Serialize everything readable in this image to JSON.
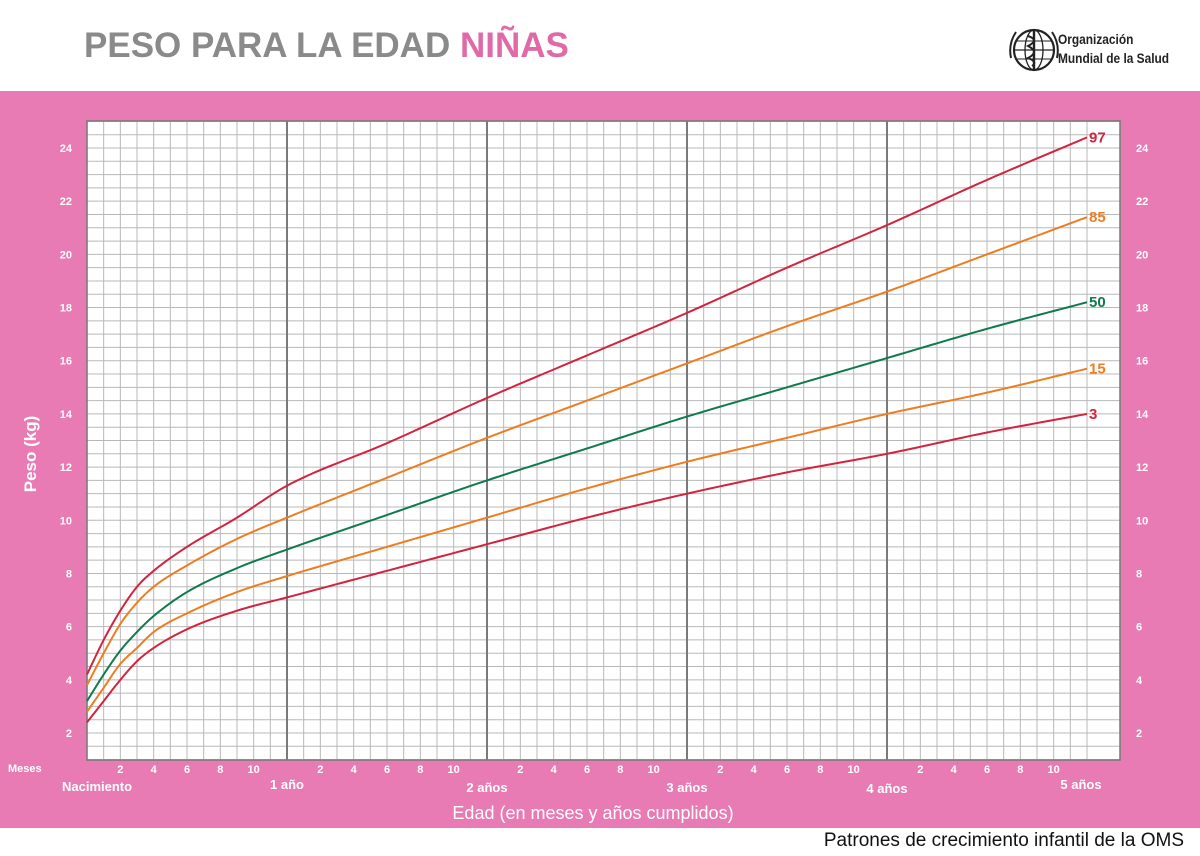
{
  "header": {
    "title_main": "PESO PARA LA EDAD",
    "title_accent": "NIÑAS",
    "org_line1": "Organización",
    "org_line2": "Mundial de la Salud"
  },
  "footer": {
    "text": "Patrones de crecimiento infantil de la OMS"
  },
  "colors": {
    "band": "#e87ab4",
    "title_gray": "#8a8a8a",
    "title_pink": "#e06aa8",
    "p3_97": "#d2233f",
    "p15_85": "#ee7d22",
    "p50": "#0f7a4c",
    "grid": "#b8b8b8",
    "grid_major": "#7a7a7a"
  },
  "chart_data": {
    "type": "line",
    "title": "PESO PARA LA EDAD NIÑAS",
    "xlabel": "Edad (en meses y años cumplidos)",
    "ylabel": "Peso (kg)",
    "x_unit": "months",
    "xlim": [
      0,
      60
    ],
    "ylim": [
      1,
      25
    ],
    "y_ticks": [
      2,
      4,
      6,
      8,
      10,
      12,
      14,
      16,
      18,
      20,
      22,
      24
    ],
    "x_month_label_prefix": "Meses",
    "x_month_ticks": [
      2,
      4,
      6,
      8,
      10
    ],
    "x_year_labels": [
      {
        "month": 0,
        "label": "Nacimiento"
      },
      {
        "month": 12,
        "label": "1 año"
      },
      {
        "month": 24,
        "label": "2 años"
      },
      {
        "month": 36,
        "label": "3 años"
      },
      {
        "month": 48,
        "label": "4 años"
      },
      {
        "month": 60,
        "label": "5 años"
      }
    ],
    "grid": true,
    "series": [
      {
        "name": "97",
        "color": "#d2233f",
        "x": [
          0,
          1,
          2,
          3,
          4,
          6,
          9,
          12,
          18,
          24,
          30,
          36,
          42,
          48,
          54,
          60
        ],
        "y": [
          4.2,
          5.5,
          6.6,
          7.5,
          8.1,
          9.0,
          10.1,
          11.3,
          12.9,
          14.6,
          16.2,
          17.8,
          19.5,
          21.1,
          22.8,
          24.4
        ]
      },
      {
        "name": "85",
        "color": "#ee7d22",
        "x": [
          0,
          1,
          2,
          3,
          4,
          6,
          9,
          12,
          18,
          24,
          30,
          36,
          42,
          48,
          54,
          60
        ],
        "y": [
          3.8,
          5.0,
          6.1,
          6.9,
          7.5,
          8.3,
          9.3,
          10.1,
          11.6,
          13.1,
          14.5,
          15.9,
          17.3,
          18.6,
          20.0,
          21.4
        ]
      },
      {
        "name": "50",
        "color": "#0f7a4c",
        "x": [
          0,
          1,
          2,
          3,
          4,
          6,
          9,
          12,
          18,
          24,
          30,
          36,
          42,
          48,
          54,
          60
        ],
        "y": [
          3.2,
          4.2,
          5.1,
          5.8,
          6.4,
          7.3,
          8.2,
          8.9,
          10.2,
          11.5,
          12.7,
          13.9,
          15.0,
          16.1,
          17.2,
          18.2
        ]
      },
      {
        "name": "15",
        "color": "#ee7d22",
        "x": [
          0,
          1,
          2,
          3,
          4,
          6,
          9,
          12,
          18,
          24,
          30,
          36,
          42,
          48,
          54,
          60
        ],
        "y": [
          2.8,
          3.7,
          4.6,
          5.2,
          5.8,
          6.5,
          7.3,
          7.9,
          9.0,
          10.1,
          11.2,
          12.2,
          13.1,
          14.0,
          14.8,
          15.7
        ]
      },
      {
        "name": "3",
        "color": "#d2233f",
        "x": [
          0,
          1,
          2,
          3,
          4,
          6,
          9,
          12,
          18,
          24,
          30,
          36,
          42,
          48,
          54,
          60
        ],
        "y": [
          2.4,
          3.2,
          4.0,
          4.7,
          5.2,
          5.9,
          6.6,
          7.1,
          8.1,
          9.1,
          10.1,
          11.0,
          11.8,
          12.5,
          13.3,
          14.0
        ]
      }
    ]
  }
}
